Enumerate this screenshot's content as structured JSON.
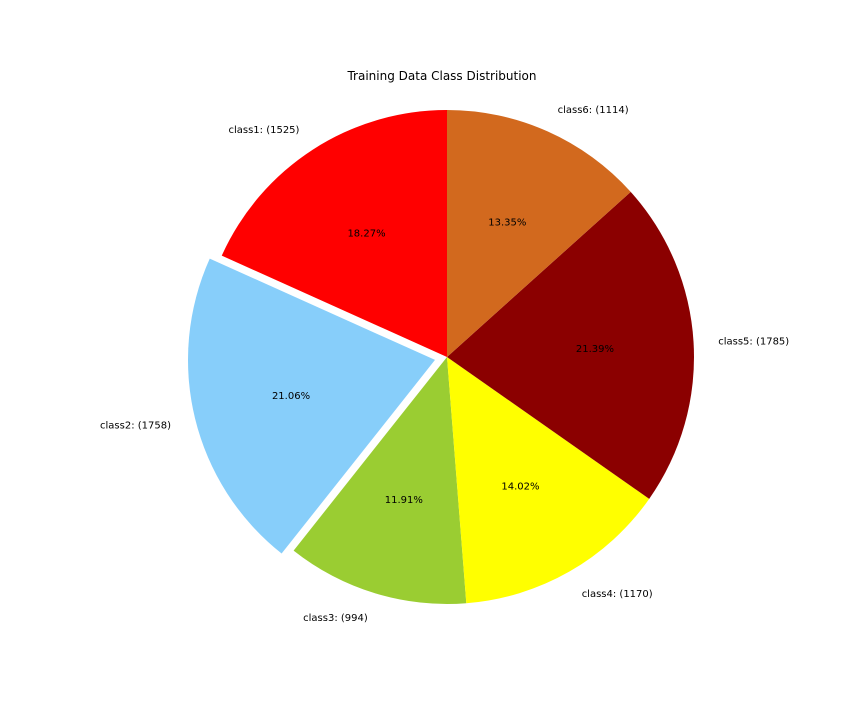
{
  "chart_data": {
    "type": "pie",
    "title": "Training Data Class Distribution",
    "slices": [
      {
        "label": "class1: (1525)",
        "category": "class1",
        "value": 1525,
        "percent_label": "18.27%",
        "color": "#ff0000",
        "explode": 0
      },
      {
        "label": "class2: (1758)",
        "category": "class2",
        "value": 1758,
        "percent_label": "21.06%",
        "color": "#87cefa",
        "explode": 0.05
      },
      {
        "label": "class3: (994)",
        "category": "class3",
        "value": 994,
        "percent_label": "11.91%",
        "color": "#9acd32",
        "explode": 0
      },
      {
        "label": "class4: (1170)",
        "category": "class4",
        "value": 1170,
        "percent_label": "14.02%",
        "color": "#ffff00",
        "explode": 0
      },
      {
        "label": "class5: (1785)",
        "category": "class5",
        "value": 1785,
        "percent_label": "21.39%",
        "color": "#8b0000",
        "explode": 0
      },
      {
        "label": "class6: (1114)",
        "category": "class6",
        "value": 1114,
        "percent_label": "13.35%",
        "color": "#d2691e",
        "explode": 0
      }
    ],
    "start_angle_deg": 90,
    "direction": "counterclockwise",
    "legend": "none"
  }
}
